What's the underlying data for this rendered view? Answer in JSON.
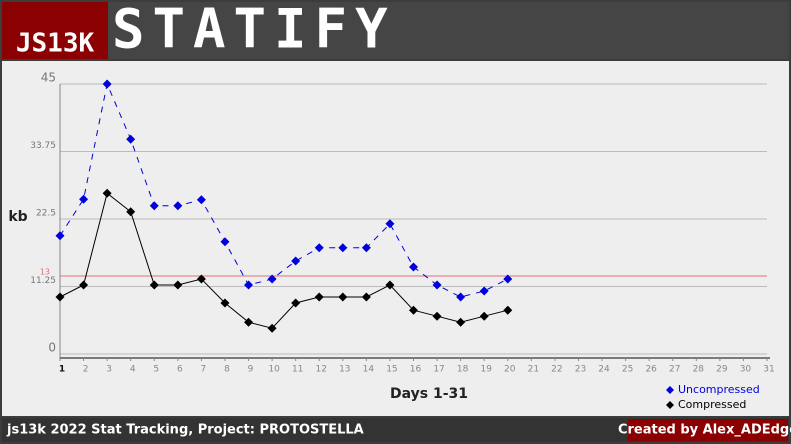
{
  "header": {
    "logo": "JS13K",
    "title": "STATIFY"
  },
  "footer": {
    "project": "js13k 2022 Stat Tracking, Project:  PROTOSTELLA",
    "credit": "Created by Alex_ADEdge"
  },
  "chart_data": {
    "type": "line",
    "x_label": "Days 1-31",
    "y_label": "kb",
    "x": [
      1,
      2,
      3,
      4,
      5,
      6,
      7,
      8,
      9,
      10,
      11,
      12,
      13,
      14,
      15,
      16,
      17,
      18,
      19,
      20,
      21,
      22,
      23,
      24,
      25,
      26,
      27,
      28,
      29,
      30,
      31
    ],
    "xlim": [
      1,
      31
    ],
    "xticks": [
      1,
      2,
      3,
      4,
      5,
      6,
      7,
      8,
      9,
      10,
      11,
      12,
      13,
      14,
      15,
      16,
      17,
      18,
      19,
      20,
      21,
      22,
      23,
      24,
      25,
      26,
      27,
      28,
      29,
      30,
      31
    ],
    "ylim": [
      0,
      45
    ],
    "yticks": [
      0,
      11.25,
      22.5,
      33.75,
      45
    ],
    "grid": true,
    "threshold": {
      "value": 13,
      "color": "#e07070"
    },
    "legend": "lower right",
    "series": [
      {
        "name": "Uncompressed",
        "color": "#0000dd",
        "dashed": true,
        "values": [
          19.7,
          25.8,
          45,
          35.8,
          24.7,
          24.7,
          25.7,
          18.7,
          11.5,
          12.5,
          15.5,
          17.7,
          17.7,
          17.7,
          21.7,
          14.5,
          11.5,
          9.5,
          10.5,
          12.5,
          null,
          null,
          null,
          null,
          null,
          null,
          null,
          null,
          null,
          null,
          null
        ]
      },
      {
        "name": "Compressed",
        "color": "#000000",
        "dashed": false,
        "values": [
          9.5,
          11.5,
          26.8,
          23.7,
          11.5,
          11.5,
          12.5,
          8.5,
          5.3,
          4.3,
          8.5,
          9.5,
          9.5,
          9.5,
          11.5,
          7.3,
          6.3,
          5.3,
          6.3,
          7.3,
          null,
          null,
          null,
          null,
          null,
          null,
          null,
          null,
          null,
          null,
          null
        ]
      }
    ]
  }
}
